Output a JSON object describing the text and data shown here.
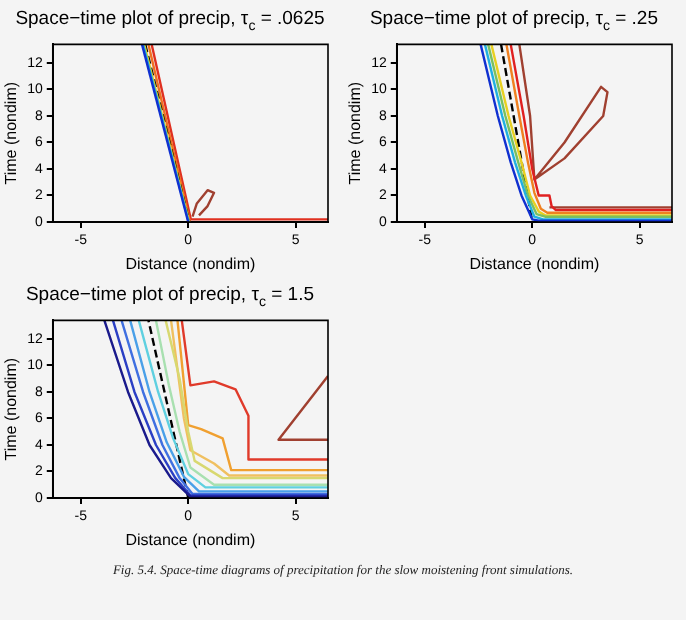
{
  "chart_data": [
    {
      "type": "line",
      "title": "Space−time plot of precip, τ$_{c}$ = .0625",
      "xlabel": "Distance (nondim)",
      "ylabel": "Time (nondim)",
      "xlim": [
        -6.3,
        6.5
      ],
      "ylim": [
        0,
        13.4
      ],
      "xticks": [
        -5,
        0,
        5
      ],
      "yticks": [
        0,
        2,
        4,
        6,
        8,
        10,
        12
      ],
      "marker": "none",
      "series": [
        {
          "type": "line",
          "color": "#1030d0",
          "x": [
            -2.15,
            0
          ],
          "values": [
            13.4,
            0
          ]
        },
        {
          "type": "line",
          "color": "#20b0e0",
          "x": [
            -2.1,
            0.02
          ],
          "values": [
            13.4,
            0
          ]
        },
        {
          "type": "line",
          "color": "#e8d020",
          "x": [
            -2.05,
            0.04
          ],
          "values": [
            13.4,
            0
          ]
        },
        {
          "type": "line",
          "color": "#000000",
          "line_style": "dashed",
          "x": [
            -2.0,
            0.05
          ],
          "values": [
            13.4,
            0
          ]
        },
        {
          "type": "line",
          "color": "#f07020",
          "x": [
            -1.85,
            0.08
          ],
          "values": [
            13.4,
            0
          ]
        },
        {
          "type": "line",
          "color": "#e03020",
          "x": [
            -1.7,
            0.12,
            6.5
          ],
          "values": [
            13.4,
            0.2,
            0.2
          ]
        },
        {
          "type": "line",
          "color": "#a04030",
          "x": [
            0.2,
            0.4,
            0.9,
            1.2,
            0.9,
            0.5
          ],
          "values": [
            0.4,
            1.4,
            2.4,
            2.2,
            1.2,
            0.5
          ]
        }
      ]
    },
    {
      "type": "line",
      "title": "Space−time plot of precip, τ$_{c}$ = .25",
      "xlabel": "Distance (nondim)",
      "ylabel": "Time (nondim)",
      "xlim": [
        -6.3,
        6.5
      ],
      "ylim": [
        0,
        13.4
      ],
      "xticks": [
        -5,
        0,
        5
      ],
      "yticks": [
        0,
        2,
        4,
        6,
        8,
        10,
        12
      ],
      "marker": "none",
      "series": [
        {
          "type": "line",
          "color": "#1030d0",
          "x": [
            -2.4,
            -1.6,
            -1.0,
            -0.5,
            0,
            0.3,
            6.5
          ],
          "values": [
            13.4,
            8,
            4.5,
            2,
            0.2,
            0.1,
            0.1
          ]
        },
        {
          "type": "line",
          "color": "#20b0e0",
          "x": [
            -2.2,
            -1.4,
            -0.8,
            -0.3,
            0.1,
            0.5,
            6.5
          ],
          "values": [
            13.4,
            8,
            4.5,
            2,
            0.4,
            0.2,
            0.2
          ]
        },
        {
          "type": "line",
          "color": "#7ac060",
          "x": [
            -2.05,
            -1.25,
            -0.65,
            -0.2,
            0.2,
            0.6,
            6.5
          ],
          "values": [
            13.4,
            8,
            4.5,
            2,
            0.6,
            0.4,
            0.4
          ]
        },
        {
          "type": "line",
          "color": "#e8d020",
          "x": [
            -1.9,
            -1.1,
            -0.5,
            -0.1,
            0.3,
            0.6,
            6.5
          ],
          "values": [
            13.4,
            8,
            4.5,
            2,
            0.8,
            0.5,
            0.5
          ]
        },
        {
          "type": "line",
          "color": "#000000",
          "line_style": "dashed",
          "x": [
            -1.45,
            0
          ],
          "values": [
            13.4,
            0
          ]
        },
        {
          "type": "line",
          "color": "#f08020",
          "x": [
            -1.2,
            -0.6,
            -0.2,
            0.1,
            0.4,
            0.7,
            6.5
          ],
          "values": [
            13.4,
            8,
            4.5,
            2.2,
            1.0,
            0.7,
            0.7
          ]
        },
        {
          "type": "line",
          "color": "#e02020",
          "x": [
            -1.0,
            -0.4,
            0,
            0.3,
            0.8,
            0.9,
            1.1,
            6.5
          ],
          "values": [
            13.4,
            8,
            4,
            2.0,
            2.0,
            1.2,
            0.9,
            0.9
          ]
        },
        {
          "type": "line",
          "color": "#a04030",
          "x": [
            -0.6,
            -0.1,
            0.1,
            1.5,
            3.2,
            3.5,
            3.3,
            1.5,
            0.1
          ],
          "values": [
            13.4,
            8,
            3.2,
            6,
            10.2,
            9.8,
            8,
            4.8,
            3.2
          ]
        },
        {
          "type": "line",
          "color": "#a04030",
          "x": [
            0.8,
            6.5
          ],
          "values": [
            1.1,
            1.1
          ]
        }
      ]
    },
    {
      "type": "line",
      "title": "Space−time plot of precip, τ$_{c}$ = 1.5",
      "xlabel": "Distance (nondim)",
      "ylabel": "Time (nondim)",
      "xlim": [
        -6.3,
        6.5
      ],
      "ylim": [
        0,
        13.4
      ],
      "xticks": [
        -5,
        0,
        5
      ],
      "yticks": [
        0,
        2,
        4,
        6,
        8,
        10,
        12
      ],
      "marker": "none",
      "annotations": [
        "Fig. 5.4. Space-time diagrams of precipitation for the slow moistening front simulations."
      ],
      "series": [
        {
          "type": "line",
          "color": "#1a1a8c",
          "x": [
            6.5,
            0.1,
            -0.8,
            -1.8,
            -2.8,
            -3.9
          ],
          "values": [
            0.1,
            0.1,
            1.5,
            4,
            8,
            13.4
          ]
        },
        {
          "type": "line",
          "color": "#2b3fc4",
          "x": [
            6.5,
            0.1,
            -0.6,
            -1.5,
            -2.5,
            -3.5
          ],
          "values": [
            0.2,
            0.2,
            1.5,
            4,
            8,
            13.4
          ]
        },
        {
          "type": "line",
          "color": "#3f6fe0",
          "x": [
            6.5,
            0.2,
            -0.4,
            -1.2,
            -2.1,
            -3.1
          ],
          "values": [
            0.3,
            0.3,
            1.5,
            4,
            8,
            13.4
          ]
        },
        {
          "type": "line",
          "color": "#4aa0e8",
          "x": [
            6.5,
            0.5,
            -0.2,
            -1.0,
            -1.8,
            -2.7
          ],
          "values": [
            0.5,
            0.5,
            1.6,
            4.2,
            8,
            13.4
          ]
        },
        {
          "type": "line",
          "color": "#5fd0e0",
          "x": [
            6.5,
            0.8,
            0,
            -0.7,
            -1.4,
            -2.3
          ],
          "values": [
            0.8,
            0.8,
            1.8,
            4.5,
            8,
            13.4
          ]
        },
        {
          "type": "line",
          "color": "#000000",
          "line_style": "dashed",
          "x": [
            0,
            -1.85
          ],
          "values": [
            0,
            13.4
          ]
        },
        {
          "type": "line",
          "color": "#a8e0b0",
          "x": [
            6.5,
            1.2,
            0.1,
            -0.4,
            -0.9,
            -1.5
          ],
          "values": [
            1.0,
            1.0,
            2.3,
            5,
            8.5,
            13.4
          ]
        },
        {
          "type": "line",
          "color": "#d8d870",
          "x": [
            6.5,
            1.6,
            0.3,
            0,
            -0.4,
            -1.05
          ],
          "values": [
            1.5,
            1.5,
            2.8,
            5,
            9,
            13.4
          ]
        },
        {
          "type": "line",
          "color": "#f0c060",
          "x": [
            6.5,
            1.9,
            1.2,
            0.1,
            -0.2,
            -0.8
          ],
          "values": [
            1.7,
            1.7,
            2.6,
            3.6,
            6,
            13.4
          ]
        },
        {
          "type": "line",
          "color": "#f0a030",
          "x": [
            6.5,
            2.0,
            1.6,
            0.6,
            0,
            -0.5
          ],
          "values": [
            2.1,
            2.1,
            4.5,
            5.2,
            5.5,
            13.4
          ]
        },
        {
          "type": "line",
          "color": "#e03a2a",
          "x": [
            6.5,
            2.8,
            2.8,
            2.2,
            1.2,
            0.1,
            -0.3
          ],
          "values": [
            2.9,
            2.9,
            6.2,
            8.2,
            8.8,
            8.5,
            13.4
          ]
        },
        {
          "type": "line",
          "color": "#a04030",
          "x": [
            6.5,
            4.2,
            6.5
          ],
          "values": [
            9.2,
            4.4,
            4.4
          ]
        }
      ]
    }
  ]
}
